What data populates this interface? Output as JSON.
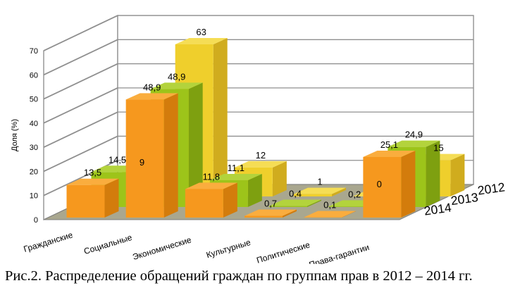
{
  "caption": "Рис.2. Распределение обращений граждан по группам прав в 2012 – 2014 гг.",
  "chart_data": {
    "type": "bar",
    "projection": "3d-oblique",
    "title": "",
    "xlabel": "",
    "ylabel": "Доля (%)",
    "ylim": [
      0,
      70
    ],
    "ytick_step": 10,
    "yticks": [
      "0",
      "10",
      "20",
      "30",
      "40",
      "50",
      "60",
      "70"
    ],
    "grid": true,
    "legend_position": "depth-axis-bottom-right",
    "categories": [
      "Гражданские",
      "Социальные",
      "Экономические",
      "Культурные",
      "Политические",
      "Права-гарантии"
    ],
    "depth_axis_labels": [
      "2014",
      "2013",
      "2012"
    ],
    "series": [
      {
        "name": "2014",
        "values": [
          13.5,
          48.9,
          11.8,
          0.7,
          0.1,
          25.1
        ],
        "value_labels": [
          "13,5",
          "48,9",
          "11,8",
          "0,7",
          "0,1",
          "25,1"
        ],
        "colors": {
          "front": "#F6981E",
          "top": "#FAAD3E",
          "side": "#D37C0C"
        }
      },
      {
        "name": "2013",
        "values": [
          14.5,
          48.9,
          11.1,
          0.4,
          0.2,
          24.9
        ],
        "value_labels": [
          "14,5",
          "48,9",
          "11,1",
          "0,4",
          "0,2",
          "24,9"
        ],
        "colors": {
          "front": "#9DC41A",
          "top": "#B3D33C",
          "side": "#7EA010"
        }
      },
      {
        "name": "2012",
        "values": [
          9,
          63,
          12,
          1,
          0,
          15
        ],
        "value_labels": [
          "9",
          "63",
          "12",
          "1",
          "0",
          "15"
        ],
        "colors": {
          "front": "#EFCF2C",
          "top": "#F5DD55",
          "side": "#D0AC1E"
        }
      }
    ],
    "floor_color": "#A9A78F",
    "wall_color": "#FFFFFF",
    "wall_border_color": "#7F7F7F",
    "grid_color": "#8F8F8F",
    "label_color": "#000000"
  }
}
